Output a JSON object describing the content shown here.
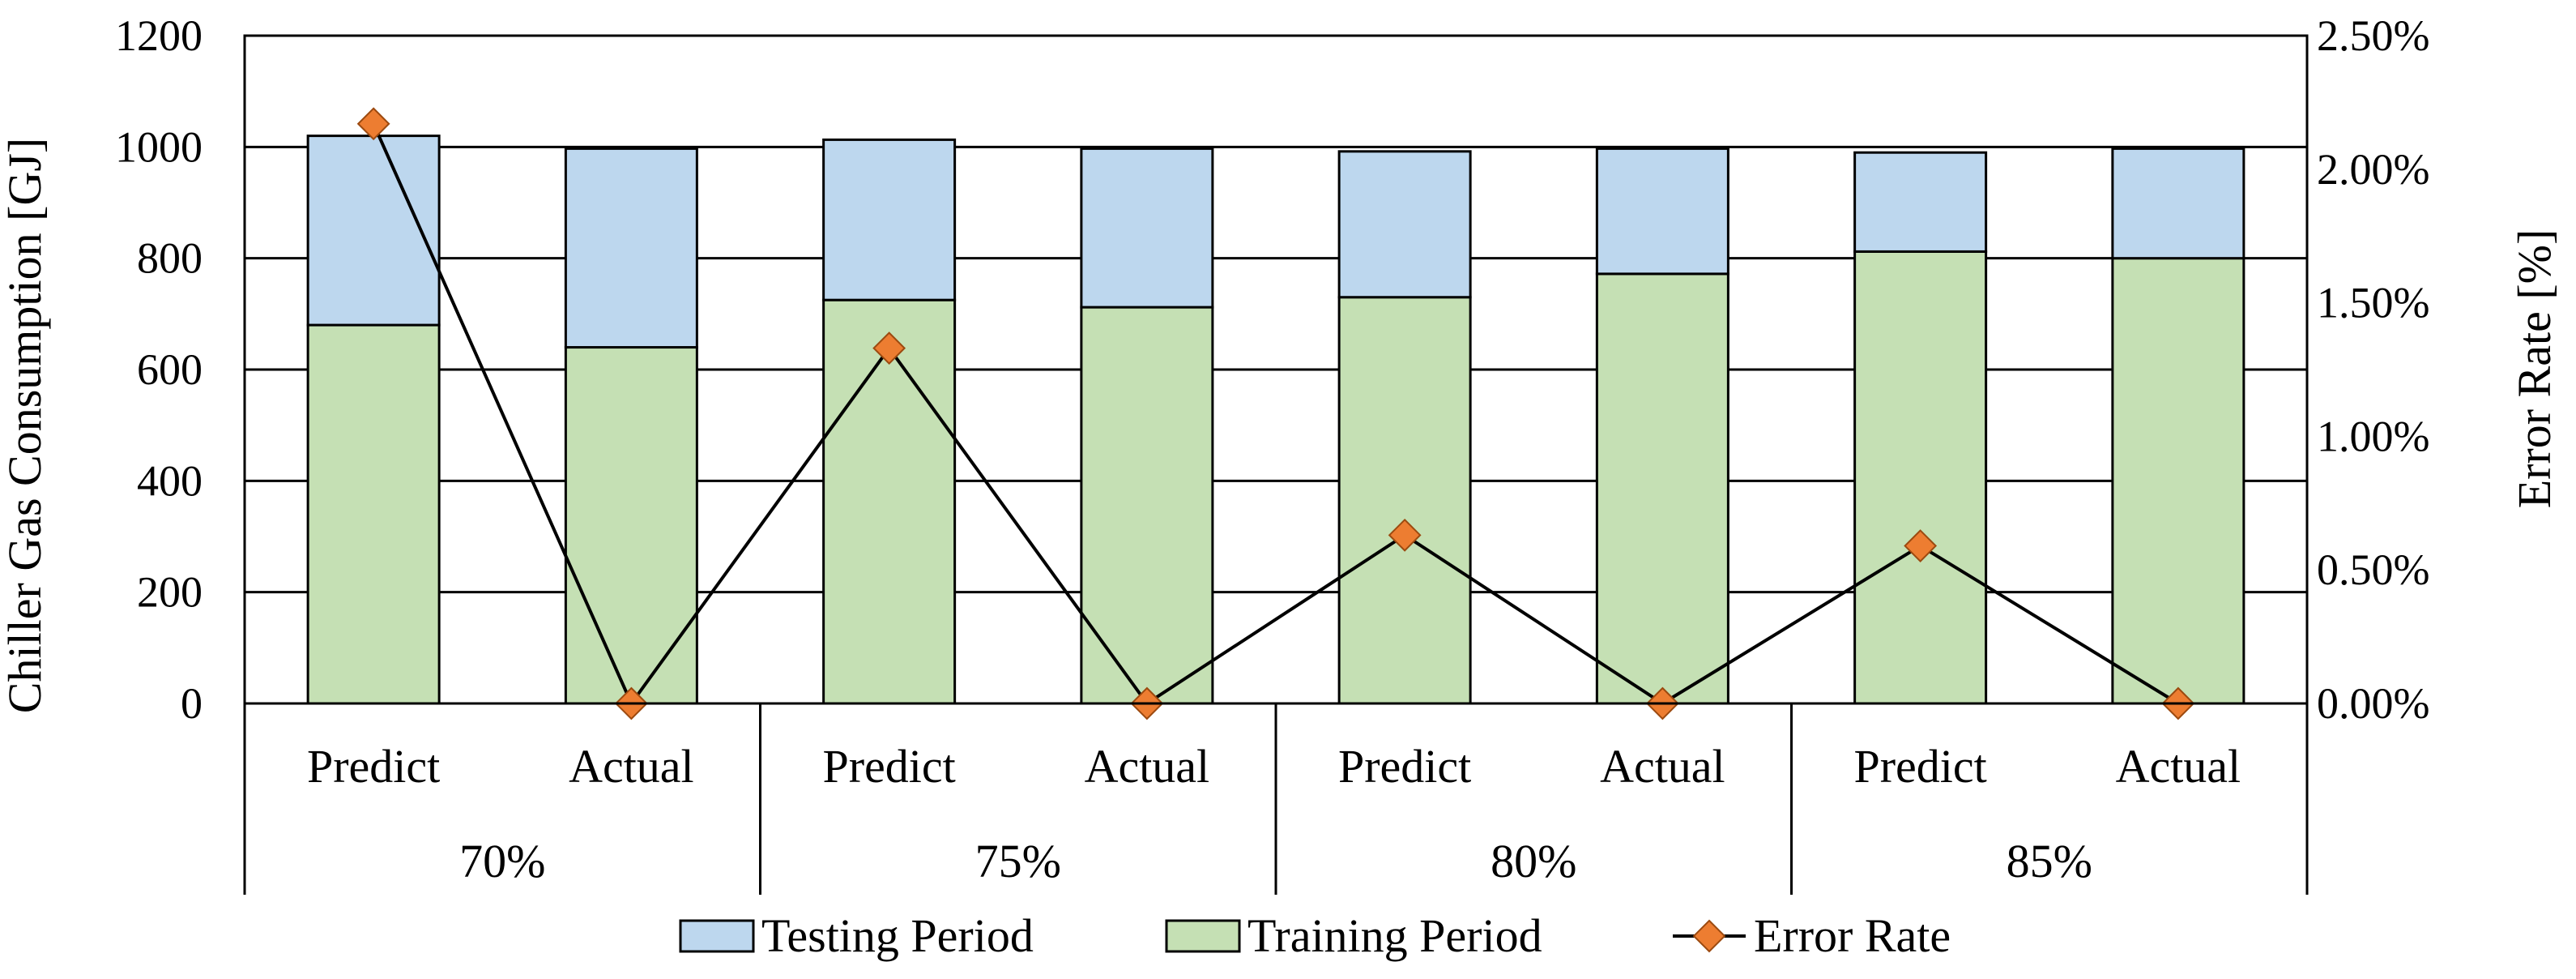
{
  "chart_data": {
    "type": "bar",
    "stacked": true,
    "categories": [
      {
        "group": "70%",
        "label": "Predict"
      },
      {
        "group": "70%",
        "label": "Actual"
      },
      {
        "group": "75%",
        "label": "Predict"
      },
      {
        "group": "75%",
        "label": "Actual"
      },
      {
        "group": "80%",
        "label": "Predict"
      },
      {
        "group": "80%",
        "label": "Actual"
      },
      {
        "group": "85%",
        "label": "Predict"
      },
      {
        "group": "85%",
        "label": "Actual"
      }
    ],
    "groups": [
      "70%",
      "75%",
      "80%",
      "85%"
    ],
    "series": [
      {
        "name": "Training Period",
        "color": "#c5e0b4",
        "values": [
          680,
          640,
          725,
          712,
          730,
          772,
          812,
          800
        ]
      },
      {
        "name": "Testing Period",
        "color": "#bdd7ee",
        "values": [
          340,
          357,
          288,
          285,
          262,
          225,
          178,
          197
        ]
      }
    ],
    "line_series": {
      "name": "Error Rate",
      "axis": "right",
      "color": "#ed7d31",
      "values": [
        2.17,
        0.0,
        1.33,
        0.0,
        0.63,
        0.0,
        0.59,
        0.0
      ]
    },
    "ylabel": "Chiller Gas Consumption  [GJ]",
    "ylim": [
      0,
      1200
    ],
    "yticks": [
      0,
      200,
      400,
      600,
      800,
      1000,
      1200
    ],
    "y2label": "Error Rate [%]",
    "y2lim": [
      0,
      2.5
    ],
    "y2ticks": [
      "0.00%",
      "0.50%",
      "1.00%",
      "1.50%",
      "2.00%",
      "2.50%"
    ],
    "legend": [
      "Testing Period",
      "Training Period",
      "Error Rate"
    ],
    "legend_position": "bottom",
    "grid": true
  }
}
